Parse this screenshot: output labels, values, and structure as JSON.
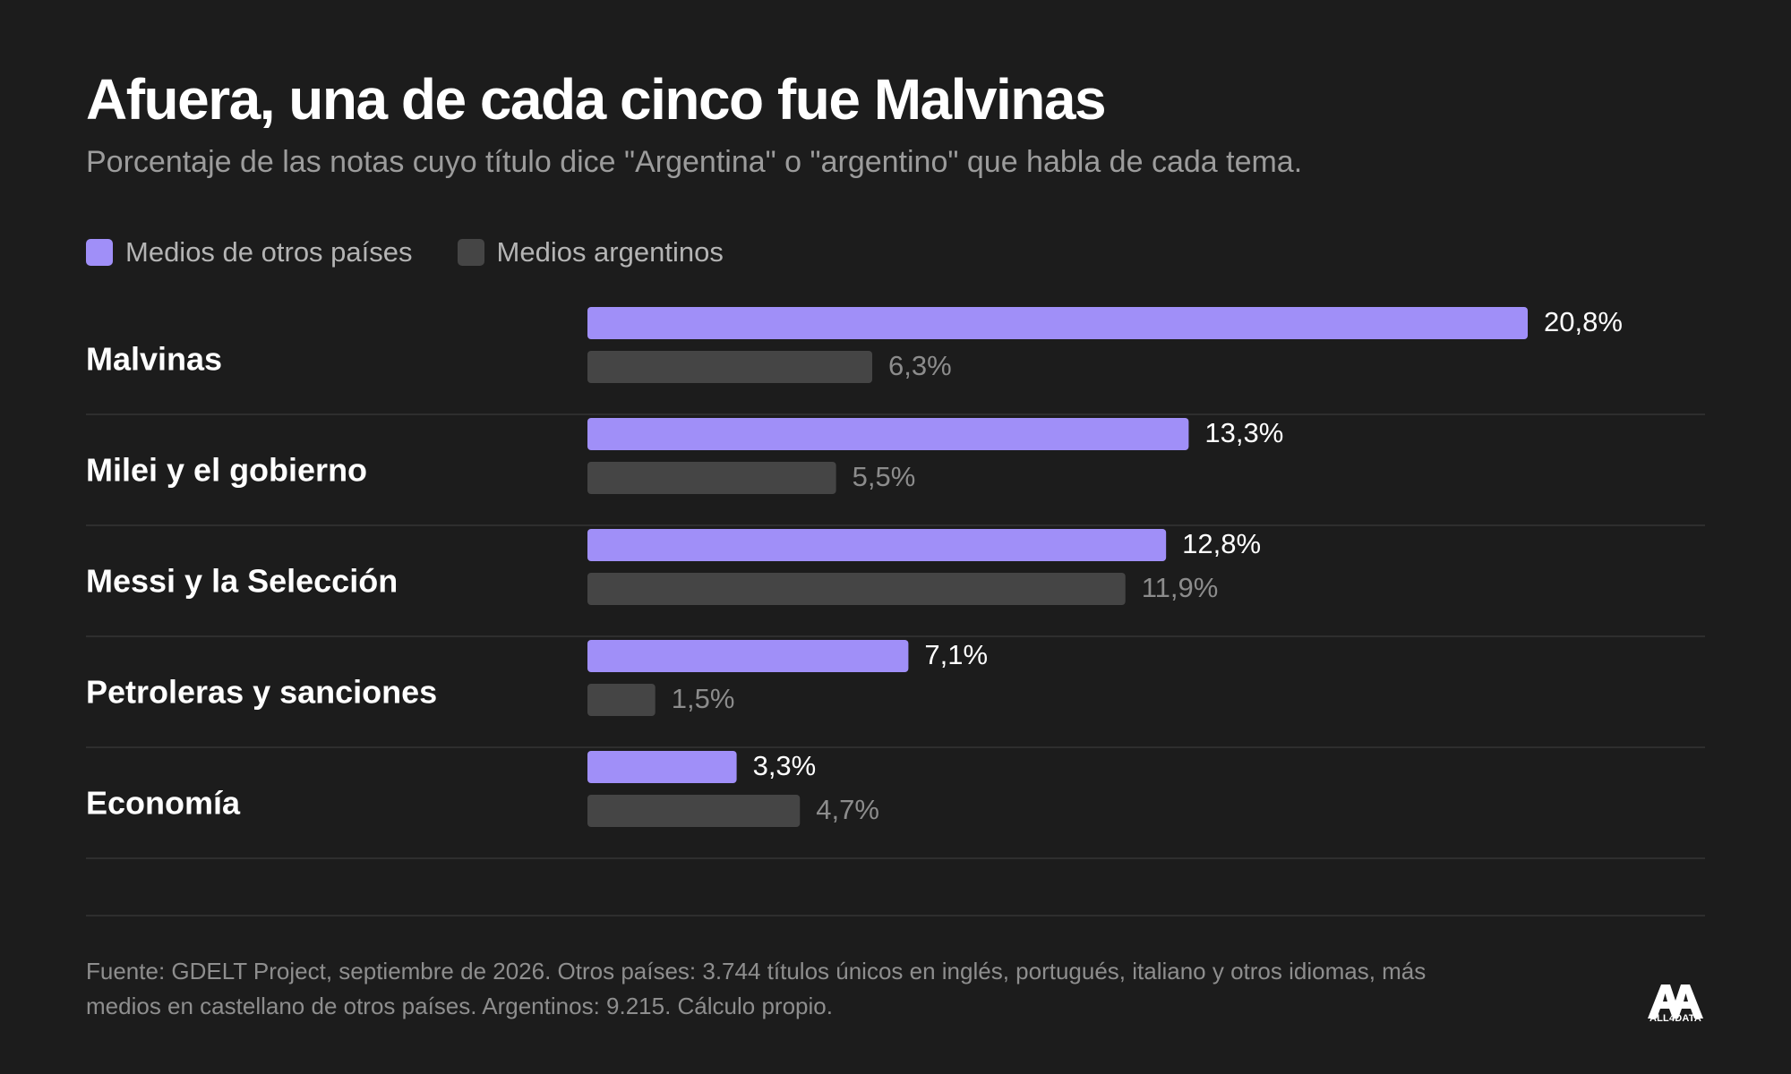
{
  "title": "Afuera, una de cada cinco fue Malvinas",
  "subtitle": "Porcentaje de las notas cuyo título dice \"Argentina\" o \"argentino\" que habla de cada tema.",
  "colors": {
    "background": "#1c1c1c",
    "foreign": "#a08ff8",
    "argentine": "#454545",
    "divider": "#2e2e2e"
  },
  "chart_data": {
    "type": "bar",
    "orientation": "horizontal",
    "categories": [
      "Malvinas",
      "Milei y el gobierno",
      "Messi y la Selección",
      "Petroleras y sanciones",
      "Economía"
    ],
    "series": [
      {
        "name": "Medios de otros países",
        "color": "#a08ff8",
        "values": [
          20.8,
          13.3,
          12.8,
          7.1,
          3.3
        ],
        "labels": [
          "20,8%",
          "13,3%",
          "12,8%",
          "7,1%",
          "3,3%"
        ]
      },
      {
        "name": "Medios argentinos",
        "color": "#454545",
        "values": [
          6.3,
          5.5,
          11.9,
          1.5,
          4.7
        ],
        "labels": [
          "6,3%",
          "5,5%",
          "11,9%",
          "1,5%",
          "4,7%"
        ]
      }
    ],
    "xlim": [
      0,
      20.8
    ],
    "legend_position": "top-left",
    "grid": false,
    "value_labels": true
  },
  "source": "Fuente: GDELT Project, septiembre de 2026. Otros países: 3.744 títulos únicos en inglés, portugués, italiano y otros idiomas, más medios en castellano de otros países. Argentinos: 9.215. Cálculo propio.",
  "logo": {
    "text": "ALL4DATA",
    "icon": "all4data-logo-icon"
  }
}
